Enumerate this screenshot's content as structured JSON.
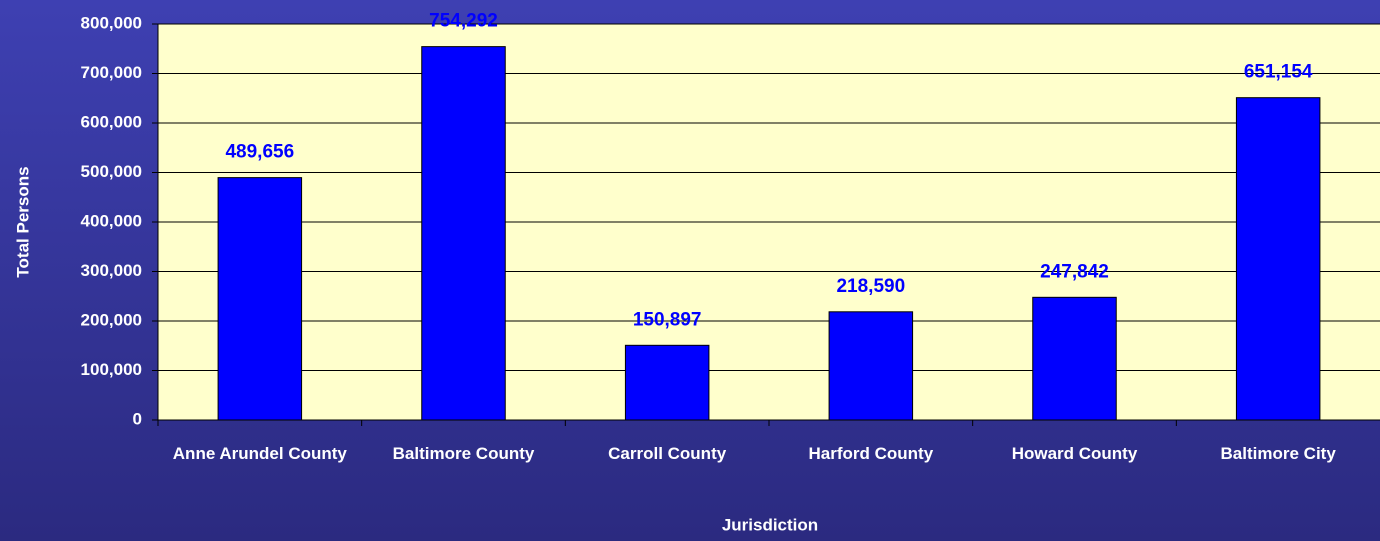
{
  "chart_data": {
    "type": "bar",
    "x_label": "Jurisdiction",
    "y_label": "Total Persons",
    "categories": [
      "Anne Arundel County",
      "Baltimore County",
      "Carroll County",
      "Harford County",
      "Howard County",
      "Baltimore City"
    ],
    "values": [
      489656,
      754292,
      150897,
      218590,
      247842,
      651154
    ],
    "value_labels": [
      "489,656",
      "754,292",
      "150,897",
      "218,590",
      "247,842",
      "651,154"
    ],
    "color": "#0000ff",
    "ylim": [
      0,
      800000
    ],
    "yticks": [
      0,
      {
        "value": 100000,
        "label": "100,000"
      },
      {
        "value": 200000,
        "label": "200,000"
      },
      {
        "value": 300000,
        "label": "300,000"
      },
      {
        "value": 400000,
        "label": "400,000"
      },
      {
        "value": 500000,
        "label": "500,000"
      },
      {
        "value": 600000,
        "label": "600,000"
      },
      {
        "value": 700000,
        "label": "700,000"
      },
      {
        "value": 800000,
        "label": "800,000"
      }
    ],
    "grid": true
  }
}
